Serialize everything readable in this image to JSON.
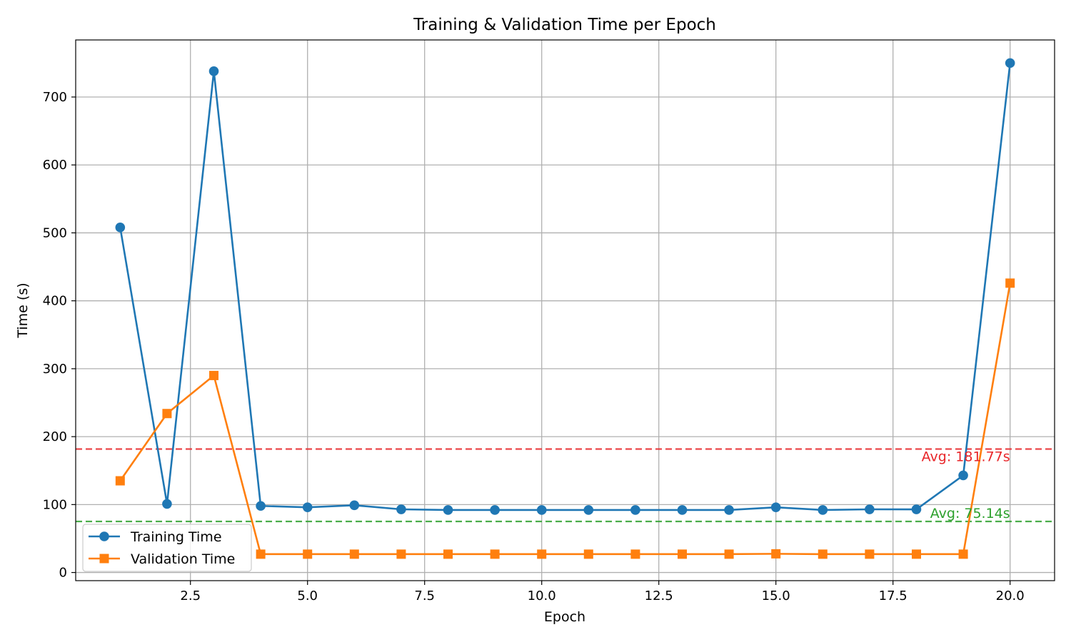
{
  "chart_data": {
    "type": "line",
    "title": "Training & Validation Time per Epoch",
    "xlabel": "Epoch",
    "ylabel": "Time (s)",
    "xlim": [
      0.05,
      20.95
    ],
    "ylim": [
      -12,
      784
    ],
    "xticks": [
      2.5,
      5.0,
      7.5,
      10.0,
      12.5,
      15.0,
      17.5,
      20.0
    ],
    "xtick_labels": [
      "2.5",
      "5.0",
      "7.5",
      "10.0",
      "12.5",
      "15.0",
      "17.5",
      "20.0"
    ],
    "yticks": [
      0,
      100,
      200,
      300,
      400,
      500,
      600,
      700
    ],
    "ytick_labels": [
      "0",
      "100",
      "200",
      "300",
      "400",
      "500",
      "600",
      "700"
    ],
    "grid": true,
    "legend_position": "lower-left",
    "x": [
      1,
      2,
      3,
      4,
      5,
      6,
      7,
      8,
      9,
      10,
      11,
      12,
      13,
      14,
      15,
      16,
      17,
      18,
      19,
      20
    ],
    "series": [
      {
        "name": "Training Time",
        "color": "#1f77b4",
        "marker": "circle",
        "values": [
          508,
          101,
          738,
          98,
          96,
          99,
          93,
          92,
          92,
          92,
          92,
          92,
          92,
          92,
          96,
          92,
          93,
          93,
          143,
          750
        ]
      },
      {
        "name": "Validation Time",
        "color": "#ff7f0e",
        "marker": "square",
        "values": [
          135,
          234,
          290,
          27,
          27,
          27,
          27,
          27,
          27,
          27,
          27,
          27,
          27,
          27,
          27.5,
          27,
          27,
          27,
          27,
          426
        ]
      }
    ],
    "hlines": [
      {
        "value": 181.77,
        "color": "#e8262a",
        "label": "Avg: 181.77s"
      },
      {
        "value": 75.14,
        "color": "#2ca02c",
        "label": "Avg: 75.14s"
      }
    ]
  }
}
